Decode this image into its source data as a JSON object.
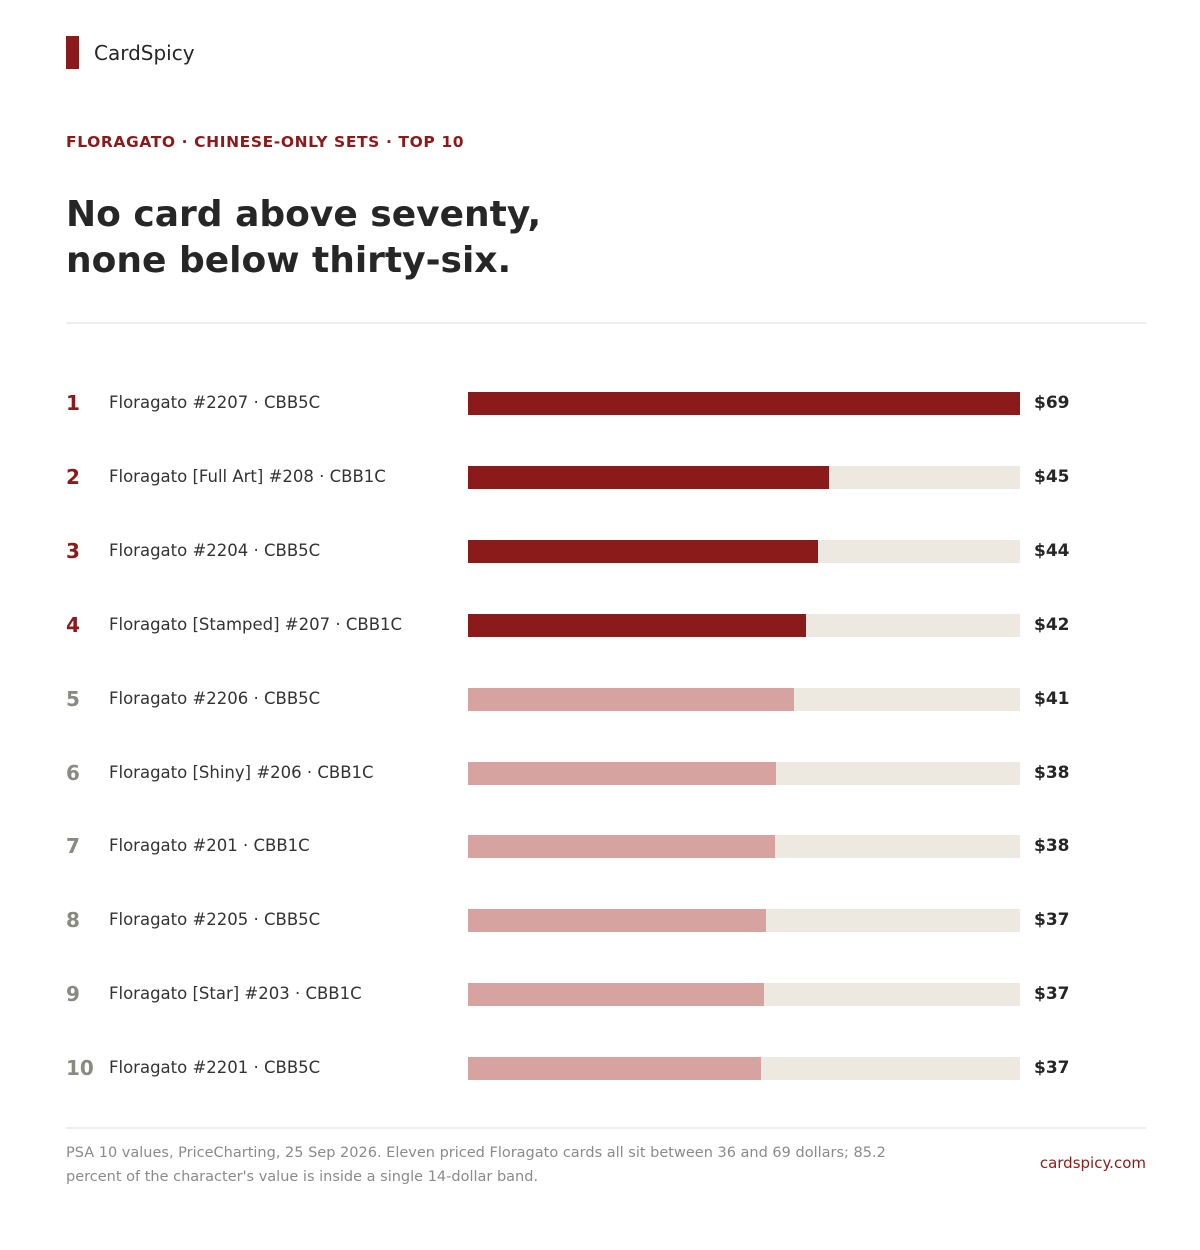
{
  "brand": {
    "name": "CardSpicy"
  },
  "kicker": "FLORAGATO · CHINESE-ONLY SETS · TOP 10",
  "title_lines": [
    "No card above seventy,",
    "none below thirty-six."
  ],
  "colors": {
    "accent": "#8b1a1a",
    "muted_bar": "#d6a3a1",
    "track": "#ede9e0",
    "rank_muted": "#8a8a80"
  },
  "chart_data": {
    "type": "bar",
    "orientation": "horizontal",
    "xlim": [
      0,
      69
    ],
    "highlight_top": 4,
    "categories": [
      "Floragato #2207 · CBB5C",
      "Floragato [Full Art] #208 · CBB1C",
      "Floragato #2204 · CBB5C",
      "Floragato [Stamped] #207 · CBB1C",
      "Floragato #2206 · CBB5C",
      "Floragato [Shiny] #206 · CBB1C",
      "Floragato #201 · CBB1C",
      "Floragato #2205 · CBB5C",
      "Floragato [Star] #203 · CBB1C",
      "Floragato #2201 · CBB5C"
    ],
    "ranks": [
      "1",
      "2",
      "3",
      "4",
      "5",
      "6",
      "7",
      "8",
      "9",
      "10"
    ],
    "values": [
      69,
      45.1,
      43.7,
      42.3,
      40.8,
      38.5,
      38.4,
      37.3,
      37,
      36.6
    ],
    "value_labels": [
      "$69",
      "$45",
      "$44",
      "$42",
      "$41",
      "$38",
      "$38",
      "$37",
      "$37",
      "$37"
    ]
  },
  "footnote": "PSA 10 values, PriceCharting, 25 Sep 2026. Eleven priced Floragato cards all sit between 36 and 69 dollars; 85.2 percent of the character's value is inside a single 14-dollar band.",
  "site": "cardspicy.com"
}
